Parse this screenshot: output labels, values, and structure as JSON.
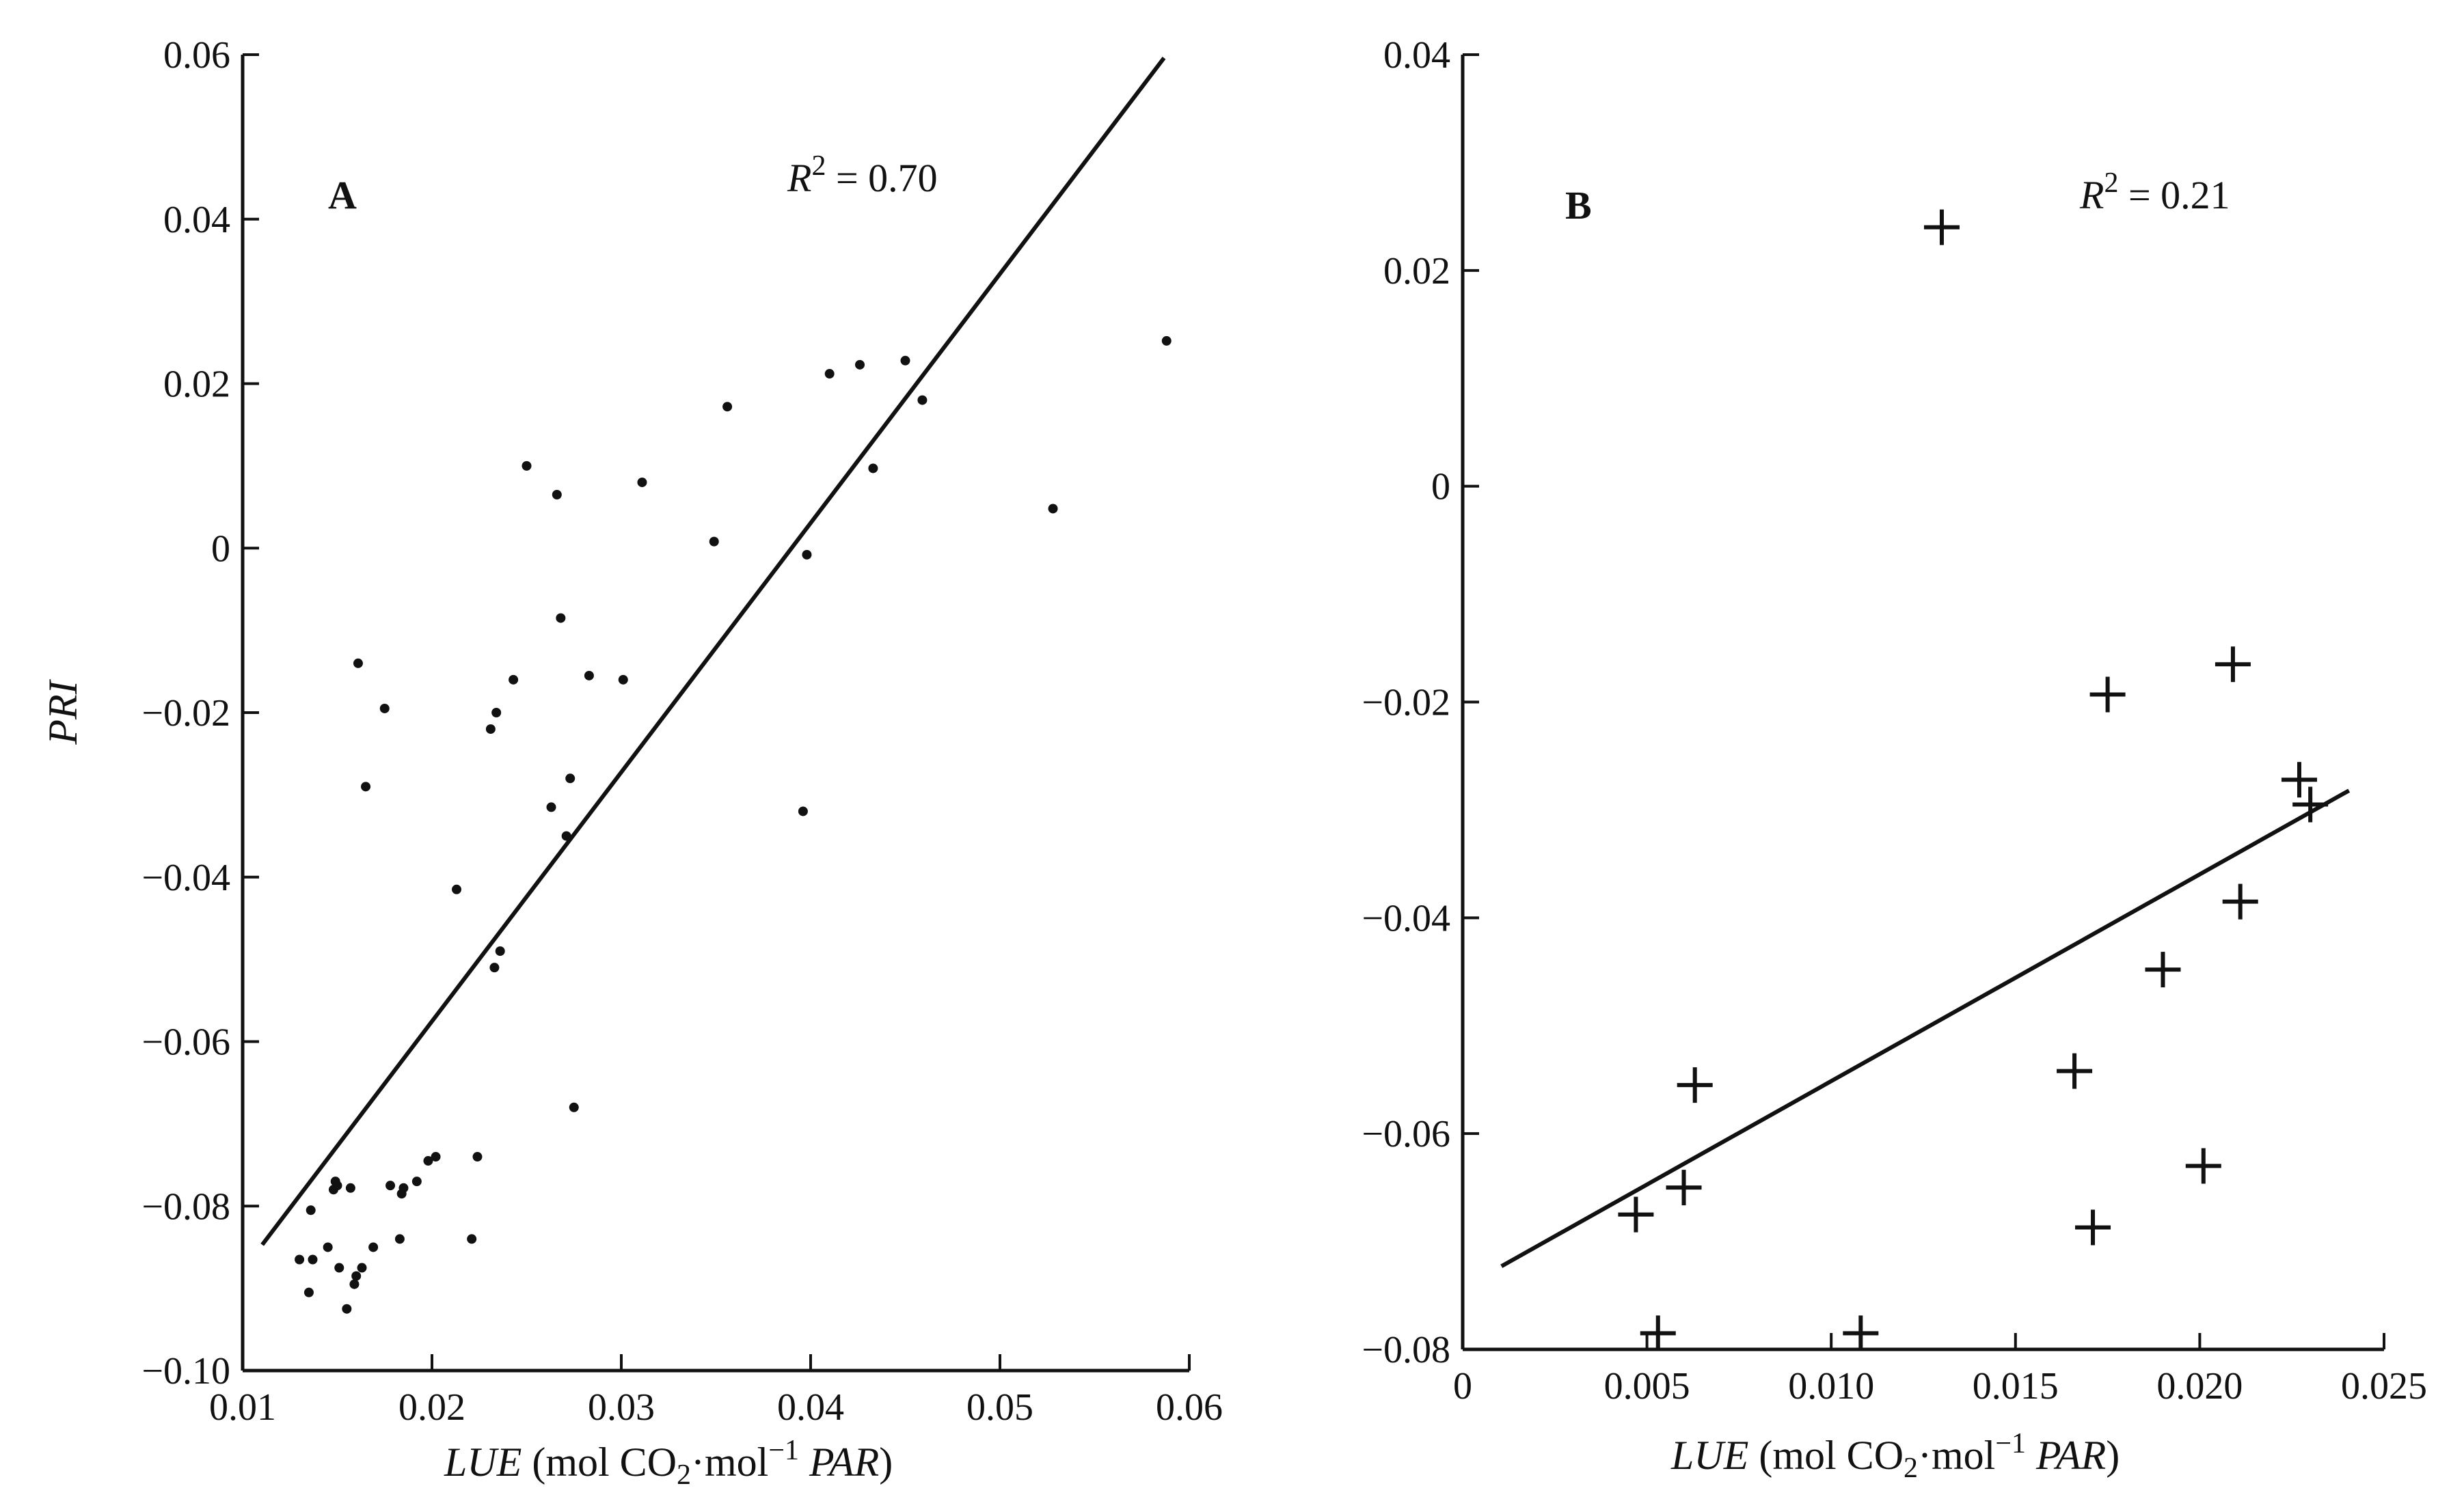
{
  "chart_data": [
    {
      "type": "scatter",
      "panel_label": "A",
      "annotation": {
        "r_italic": "R",
        "r_power": "2",
        "r_rest": " = 0.70"
      },
      "xlabel": {
        "italic": "LUE",
        "mid1": " (mol CO",
        "sub": "2",
        "mid2": "·mol",
        "sup": "−1",
        "tail": " PAR",
        "close": ")"
      },
      "ylabel": "PRI",
      "xlim": [
        0.01,
        0.06
      ],
      "ylim": [
        -0.1,
        0.06
      ],
      "x_ticks": [
        "0.01",
        "0.02",
        "0.03",
        "0.04",
        "0.05",
        "0.06"
      ],
      "y_ticks": [
        "−0.10",
        "−0.08",
        "−0.06",
        "−0.04",
        "−0.02",
        "0",
        "0.02",
        "0.04",
        "0.06"
      ],
      "marker": "dot",
      "points": [
        [
          0.013,
          -0.0865
        ],
        [
          0.0135,
          -0.0905
        ],
        [
          0.0136,
          -0.0805
        ],
        [
          0.0137,
          -0.0865
        ],
        [
          0.0145,
          -0.085
        ],
        [
          0.0148,
          -0.078
        ],
        [
          0.0149,
          -0.077
        ],
        [
          0.015,
          -0.0775
        ],
        [
          0.0151,
          -0.0875
        ],
        [
          0.0155,
          -0.0925
        ],
        [
          0.0157,
          -0.0778
        ],
        [
          0.0159,
          -0.0895
        ],
        [
          0.016,
          -0.0885
        ],
        [
          0.0161,
          -0.014
        ],
        [
          0.0163,
          -0.0875
        ],
        [
          0.0165,
          -0.029
        ],
        [
          0.0169,
          -0.085
        ],
        [
          0.0175,
          -0.0195
        ],
        [
          0.0178,
          -0.0775
        ],
        [
          0.0183,
          -0.084
        ],
        [
          0.0184,
          -0.0785
        ],
        [
          0.0185,
          -0.0778
        ],
        [
          0.0192,
          -0.077
        ],
        [
          0.0198,
          -0.0745
        ],
        [
          0.0202,
          -0.074
        ],
        [
          0.0213,
          -0.0415
        ],
        [
          0.0221,
          -0.084
        ],
        [
          0.0224,
          -0.074
        ],
        [
          0.0231,
          -0.022
        ],
        [
          0.0233,
          -0.051
        ],
        [
          0.0234,
          -0.02
        ],
        [
          0.0236,
          -0.049
        ],
        [
          0.0243,
          -0.016
        ],
        [
          0.025,
          0.01
        ],
        [
          0.0263,
          -0.0315
        ],
        [
          0.0266,
          0.0065
        ],
        [
          0.0268,
          -0.0085
        ],
        [
          0.0271,
          -0.035
        ],
        [
          0.0273,
          -0.028
        ],
        [
          0.0275,
          -0.068
        ],
        [
          0.0283,
          -0.0155
        ],
        [
          0.0301,
          -0.016
        ],
        [
          0.0311,
          0.008
        ],
        [
          0.0349,
          0.0008
        ],
        [
          0.0356,
          0.0172
        ],
        [
          0.0396,
          -0.032
        ],
        [
          0.0398,
          -0.0008
        ],
        [
          0.041,
          0.0212
        ],
        [
          0.0426,
          0.0223
        ],
        [
          0.0433,
          0.0097
        ],
        [
          0.045,
          0.0228
        ],
        [
          0.0459,
          0.018
        ],
        [
          0.0528,
          0.0048
        ],
        [
          0.0588,
          0.0252
        ]
      ],
      "trendline": {
        "x": [
          0.0111,
          0.0586
        ],
        "y": [
          -0.0845,
          0.0594
        ]
      }
    },
    {
      "type": "scatter",
      "panel_label": "B",
      "annotation": {
        "r_italic": "R",
        "r_power": "2",
        "r_rest": " = 0.21"
      },
      "xlabel": {
        "italic": "LUE",
        "mid1": " (mol CO",
        "sub": "2",
        "mid2": "·mol",
        "sup": "−1",
        "tail": " PAR",
        "close": ")"
      },
      "xlim": [
        0,
        0.025
      ],
      "ylim": [
        -0.08,
        0.04
      ],
      "x_ticks": [
        "0",
        "0.005",
        "0.010",
        "0.015",
        "0.020",
        "0.025"
      ],
      "y_ticks": [
        "−0.08",
        "−0.06",
        "−0.04",
        "−0.02",
        "0",
        "0.02",
        "0.04"
      ],
      "marker": "plus",
      "points": [
        [
          0.0047,
          -0.0675
        ],
        [
          0.0053,
          -0.0785
        ],
        [
          0.006,
          -0.065
        ],
        [
          0.0063,
          -0.0555
        ],
        [
          0.0108,
          -0.0785
        ],
        [
          0.013,
          0.024
        ],
        [
          0.0166,
          -0.0542
        ],
        [
          0.0171,
          -0.0687
        ],
        [
          0.0175,
          -0.0193
        ],
        [
          0.019,
          -0.0448
        ],
        [
          0.0201,
          -0.063
        ],
        [
          0.0209,
          -0.0165
        ],
        [
          0.0211,
          -0.0385
        ],
        [
          0.0227,
          -0.0272
        ],
        [
          0.023,
          -0.0295
        ]
      ],
      "trendline": {
        "x": [
          0.0011,
          0.024
        ],
        "y": [
          -0.0722,
          -0.0283
        ]
      }
    }
  ]
}
